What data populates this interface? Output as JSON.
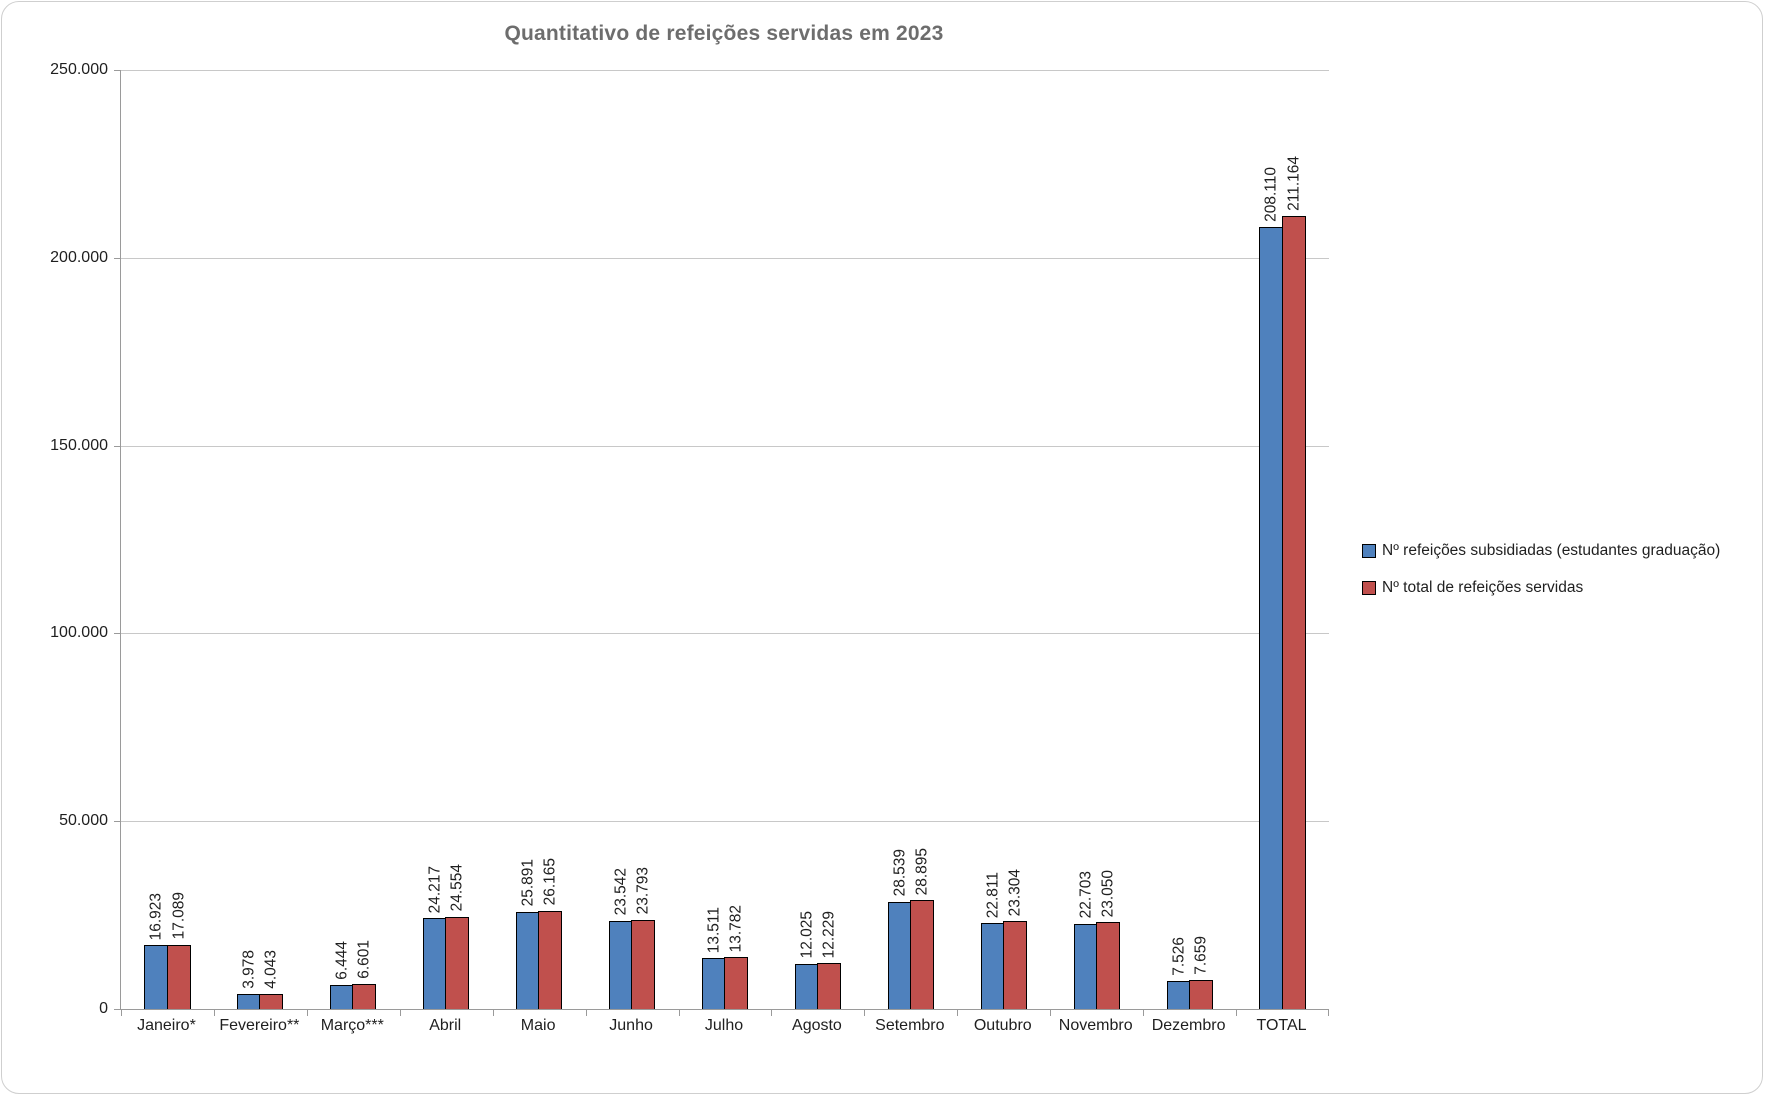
{
  "title": "Quantitativo de refeições servidas em 2023",
  "legend": {
    "items": [
      {
        "label": "Nº refeições subsidiadas (estudantes graduação)",
        "color": "#4F81BD"
      },
      {
        "label": "Nº total de refeições servidas",
        "color": "#C0504D"
      }
    ]
  },
  "colors": {
    "series_blue": "#4F81BD",
    "series_red": "#C0504D",
    "bar_border": "#000000",
    "gridline": "#c8c8c8",
    "axis_line": "#9a9a9a",
    "title_text": "#6d6d6d",
    "label_text": "#1f1f1f",
    "frame_border": "#cfcfcf"
  },
  "chart_data": {
    "type": "bar",
    "title": "Quantitativo de refeições servidas em 2023",
    "categories": [
      "Janeiro*",
      "Fevereiro**",
      "Março***",
      "Abril",
      "Maio",
      "Junho",
      "Julho",
      "Agosto",
      "Setembro",
      "Outubro",
      "Novembro",
      "Dezembro",
      "TOTAL"
    ],
    "series": [
      {
        "name": "Nº refeições subsidiadas (estudantes graduação)",
        "color": "#4F81BD",
        "values": [
          16923,
          3978,
          6444,
          24217,
          25891,
          23542,
          13511,
          12025,
          28539,
          22811,
          22703,
          7526,
          208110
        ]
      },
      {
        "name": "Nº total de refeições servidas",
        "color": "#C0504D",
        "values": [
          17089,
          4043,
          6601,
          24554,
          26165,
          23793,
          13782,
          12229,
          28895,
          23304,
          23050,
          7659,
          211164
        ]
      }
    ],
    "xlabel": "",
    "ylabel": "",
    "ylim": [
      0,
      250000
    ],
    "ytick_step": 50000,
    "ytick_labels": [
      "0",
      "50.000",
      "100.000",
      "150.000",
      "200.000",
      "250.000"
    ],
    "grid": true,
    "legend_position": "right",
    "value_labels": "rotated-90-above-bars",
    "number_format": "thousands-dot"
  }
}
